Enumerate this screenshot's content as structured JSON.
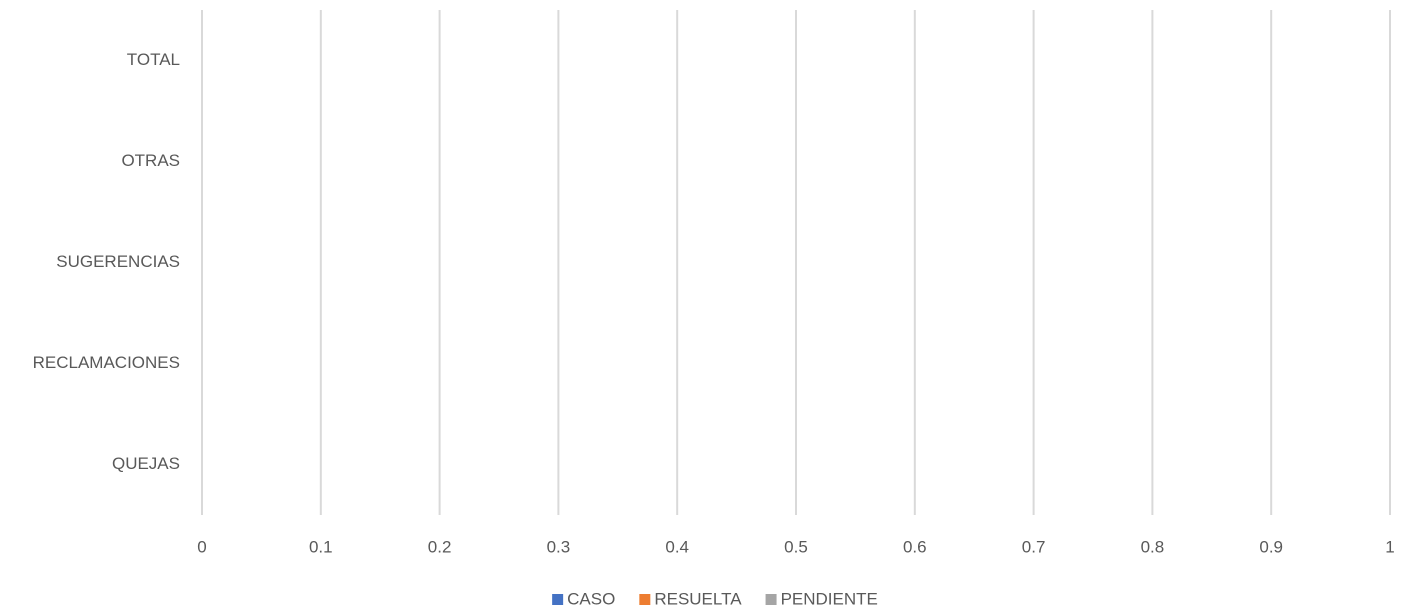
{
  "chart_data": {
    "type": "barh",
    "categories": [
      "QUEJAS",
      "RECLAMACIONES",
      "SUGERENCIAS",
      "OTRAS",
      "TOTAL"
    ],
    "series": [
      {
        "name": "CASO",
        "color": "#4472c4",
        "values": [
          0,
          0,
          0,
          0,
          0
        ]
      },
      {
        "name": "RESUELTA",
        "color": "#ed7d31",
        "values": [
          0,
          0,
          0,
          0,
          0
        ]
      },
      {
        "name": "PENDIENTE",
        "color": "#a5a5a5",
        "values": [
          0,
          0,
          0,
          0,
          0
        ]
      }
    ],
    "xlim": [
      0,
      1
    ],
    "xticks": [
      0,
      0.1,
      0.2,
      0.3,
      0.4,
      0.5,
      0.6,
      0.7,
      0.8,
      0.9,
      1
    ],
    "grid": true,
    "legend": "bottom"
  }
}
